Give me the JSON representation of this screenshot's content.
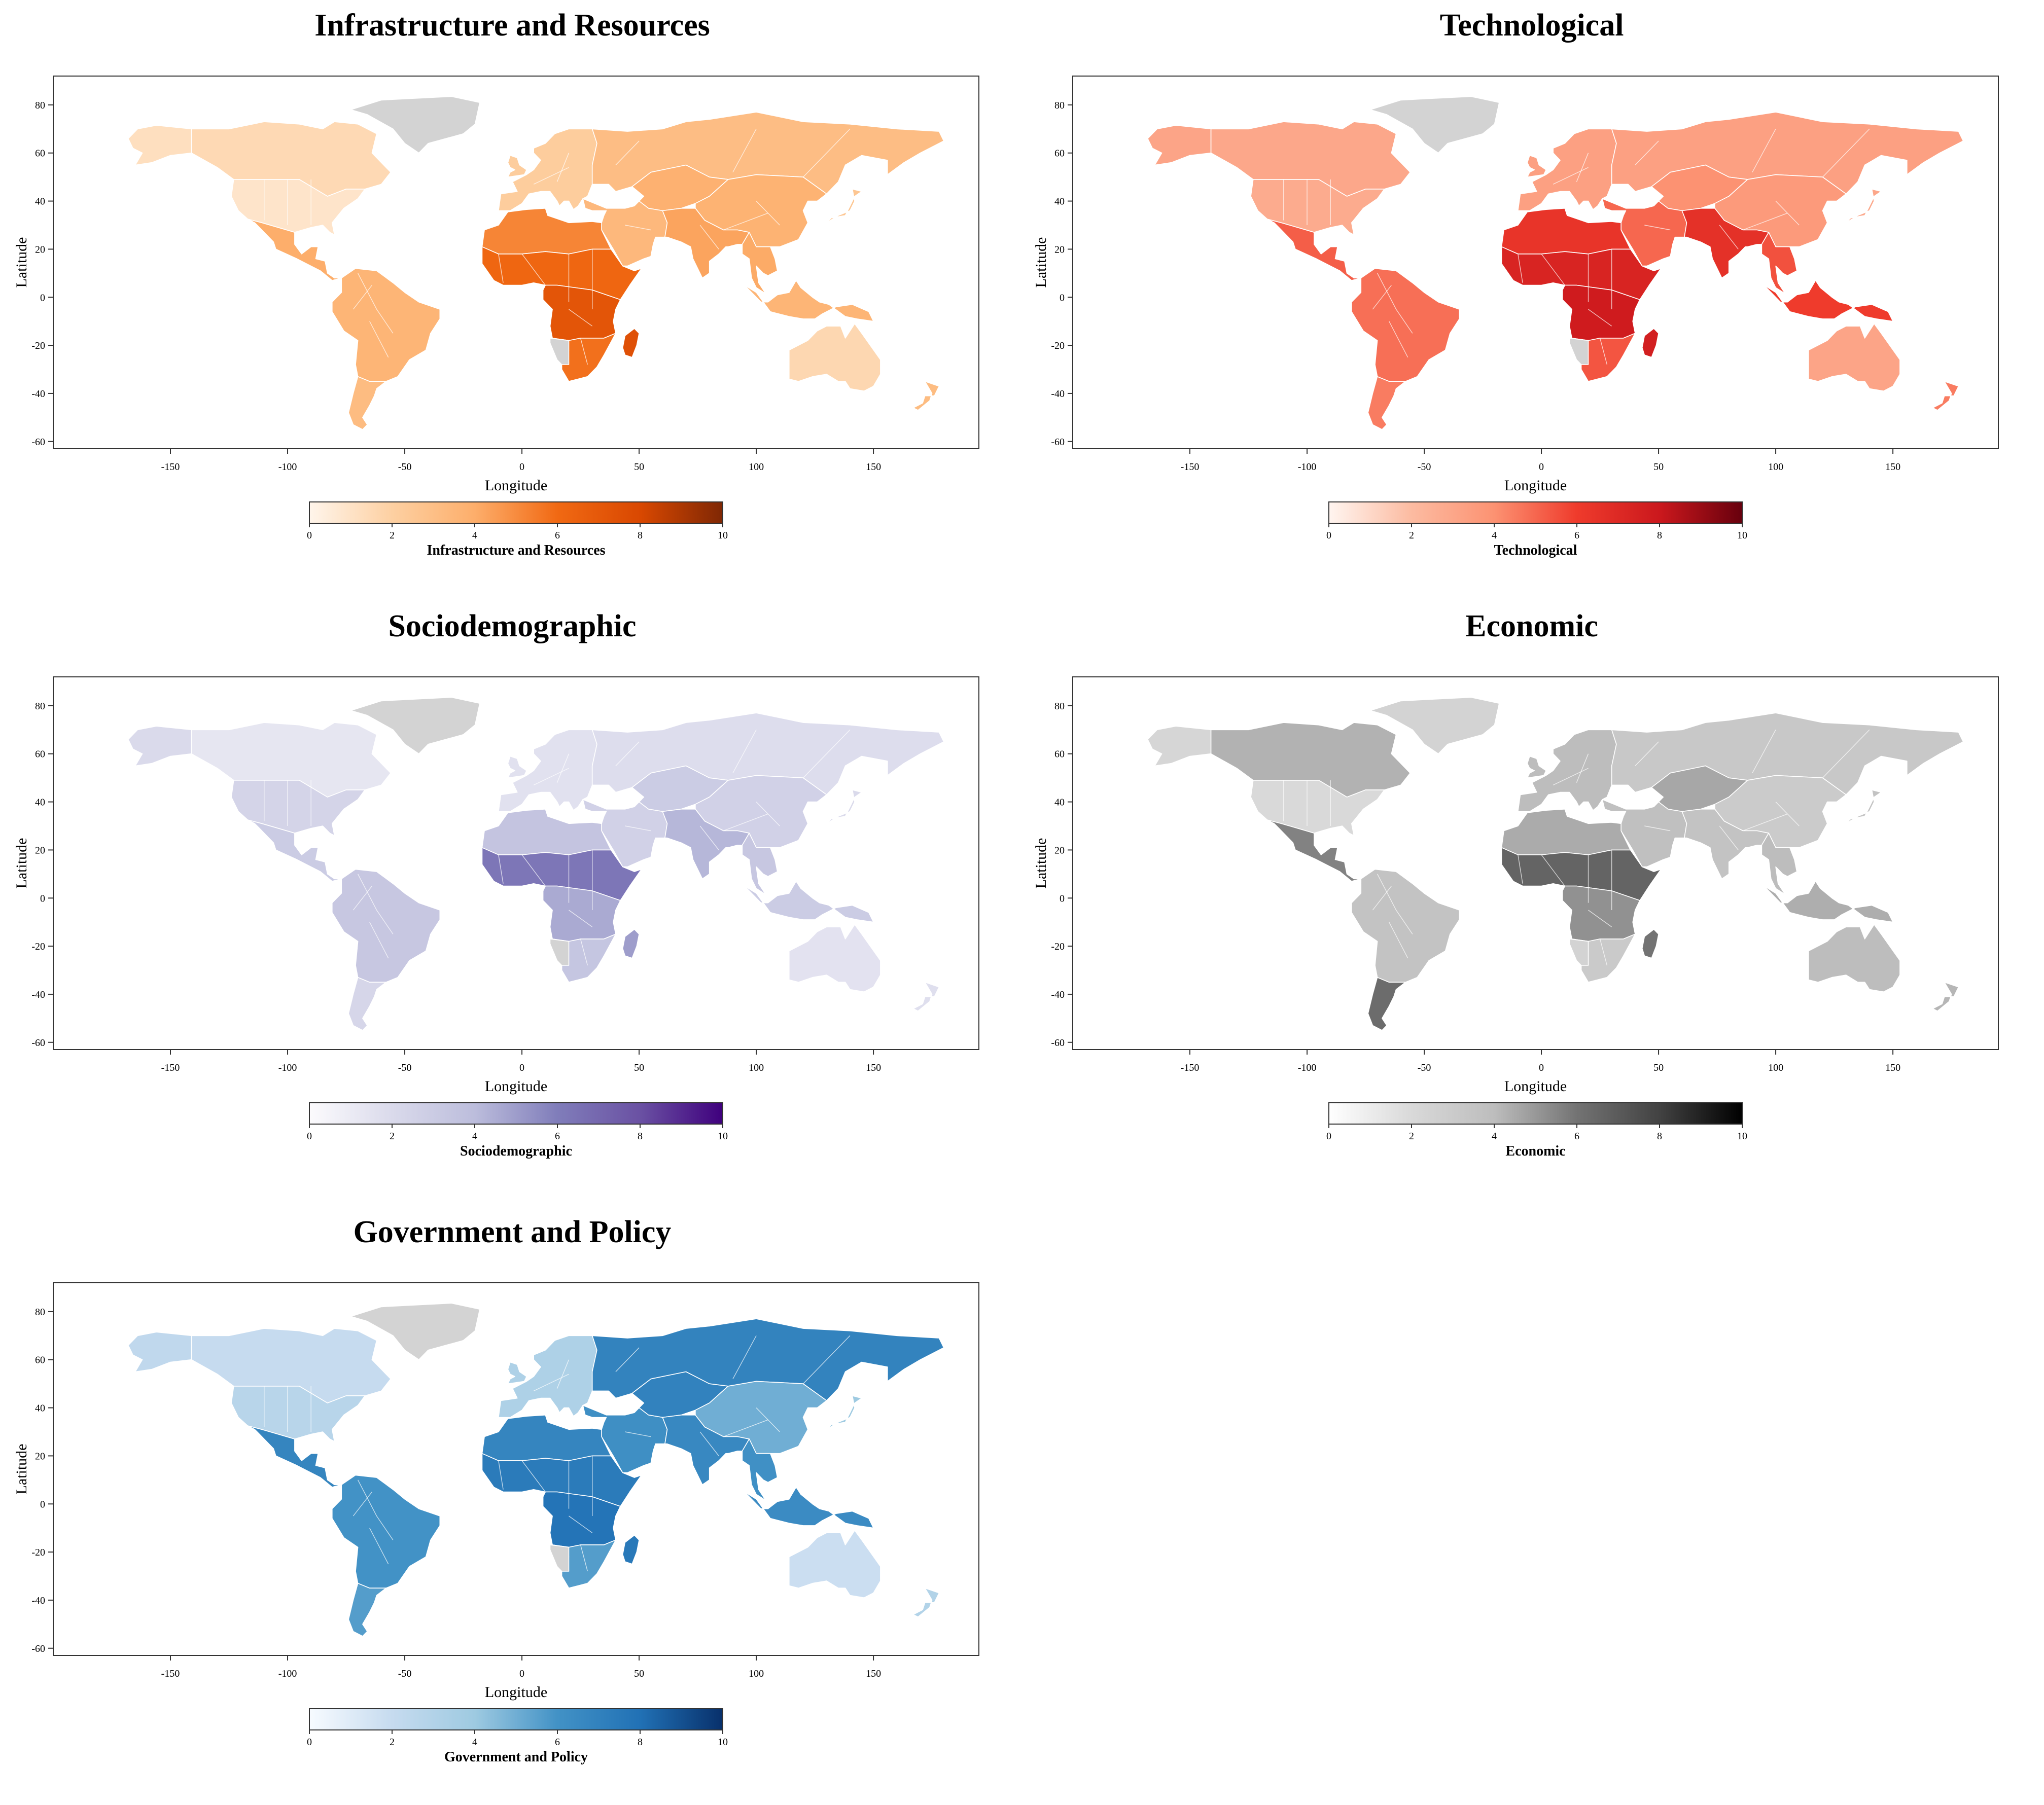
{
  "x_axis": {
    "label": "Longitude",
    "ticks": [
      -150,
      -100,
      -50,
      0,
      50,
      100,
      150
    ],
    "range": [
      -200,
      195
    ]
  },
  "y_axis": {
    "label": "Latitude",
    "ticks": [
      -60,
      -40,
      -20,
      0,
      20,
      40,
      60,
      80
    ],
    "range": [
      -63,
      92
    ]
  },
  "colorbar": {
    "range": [
      0,
      10
    ],
    "ticks": [
      0,
      2,
      4,
      6,
      8,
      10
    ]
  },
  "panels": [
    {
      "title": "Infrastructure and Resources",
      "colorbar_label": "Infrastructure and Resources",
      "scale": [
        "#fff5eb",
        "#fdd0a2",
        "#fdae6b",
        "#f16913",
        "#d94801",
        "#7f2704"
      ],
      "region_values": {
        "canada": 1.5,
        "alaska": 1.2,
        "usa": 0.9,
        "mexico_central": 4.0,
        "south_america": 3.6,
        "patagonia": 3.2,
        "europe": 2.2,
        "russia": 3.1,
        "china": 3.7,
        "middle_east": 3.4,
        "central_asia": 3.8,
        "south_asia": 4.3,
        "north_africa": 5.2,
        "sahel": 6.2,
        "central_africa": 7.2,
        "southern_africa": 5.8,
        "southeast_asia": 4.1,
        "indonesia": 3.6,
        "australia": 1.6,
        "nz": 3.2,
        "madagascar": 7.5,
        "japan": 2.6,
        "namibia": null,
        "greenland": null
      }
    },
    {
      "title": "Technological",
      "colorbar_label": "Technological",
      "scale": [
        "#fff5f0",
        "#fcbba1",
        "#fc9272",
        "#ef3b2c",
        "#cb181d",
        "#67000d"
      ],
      "region_values": {
        "canada": 3.0,
        "alaska": 3.1,
        "usa": 2.8,
        "mexico_central": 5.2,
        "south_america": 4.8,
        "patagonia": 4.5,
        "europe": 3.3,
        "russia": 3.3,
        "china": 3.6,
        "middle_east": 5.0,
        "central_asia": 4.0,
        "south_asia": 6.6,
        "north_africa": 6.4,
        "sahel": 7.3,
        "central_africa": 7.8,
        "southern_africa": 5.4,
        "southeast_asia": 5.5,
        "indonesia": 6.0,
        "australia": 3.1,
        "nz": 4.5,
        "madagascar": 7.6,
        "japan": 3.0,
        "namibia": null,
        "greenland": null
      }
    },
    {
      "title": "Sociodemographic",
      "colorbar_label": "Sociodemographic",
      "scale": [
        "#fcfbfd",
        "#dadaeb",
        "#bcbddc",
        "#807dba",
        "#6a51a3",
        "#3f007d"
      ],
      "region_values": {
        "canada": 1.3,
        "alaska": 2.0,
        "usa": 2.4,
        "mexico_central": 3.0,
        "south_america": 3.3,
        "patagonia": 2.3,
        "europe": 1.6,
        "russia": 1.8,
        "china": 2.6,
        "middle_east": 2.6,
        "central_asia": 3.0,
        "south_asia": 4.2,
        "north_africa": 3.5,
        "sahel": 6.3,
        "central_africa": 4.6,
        "southern_africa": 3.4,
        "southeast_asia": 3.3,
        "indonesia": 3.0,
        "australia": 1.5,
        "nz": 1.7,
        "madagascar": 5.0,
        "japan": 2.0,
        "namibia": null,
        "greenland": null
      }
    },
    {
      "title": "Economic",
      "colorbar_label": "Economic",
      "scale": [
        "#ffffff",
        "#d9d9d9",
        "#bdbdbd",
        "#737373",
        "#424242",
        "#000000"
      ],
      "region_values": {
        "canada": 4.3,
        "alaska": 2.2,
        "usa": 2.0,
        "mexico_central": 5.6,
        "south_america": 3.6,
        "patagonia": 6.3,
        "europe": 4.0,
        "russia": 3.2,
        "china": 3.0,
        "middle_east": 3.8,
        "central_asia": 4.6,
        "south_asia": 3.6,
        "north_africa": 4.5,
        "sahel": 6.6,
        "central_africa": 5.2,
        "southern_africa": 3.1,
        "southeast_asia": 4.0,
        "indonesia": 4.4,
        "australia": 4.0,
        "nz": 4.2,
        "madagascar": 6.0,
        "japan": 3.6,
        "namibia": null,
        "greenland": null
      }
    },
    {
      "title": "Government and Policy",
      "colorbar_label": "Government and Policy",
      "scale": [
        "#f7fbff",
        "#c6dbef",
        "#9ecae1",
        "#4292c6",
        "#2171b5",
        "#08306b"
      ],
      "region_values": {
        "canada": 2.0,
        "alaska": 2.3,
        "usa": 2.7,
        "mexico_central": 6.8,
        "south_america": 6.0,
        "patagonia": 5.6,
        "europe": 3.2,
        "russia": 6.9,
        "china": 5.0,
        "middle_east": 6.2,
        "central_asia": 7.0,
        "south_asia": 6.6,
        "north_africa": 6.8,
        "sahel": 7.4,
        "central_africa": 7.8,
        "southern_africa": 5.6,
        "southeast_asia": 6.1,
        "indonesia": 6.4,
        "australia": 1.8,
        "nz": 3.0,
        "madagascar": 7.5,
        "japan": 4.0,
        "namibia": null,
        "greenland": null
      }
    }
  ]
}
